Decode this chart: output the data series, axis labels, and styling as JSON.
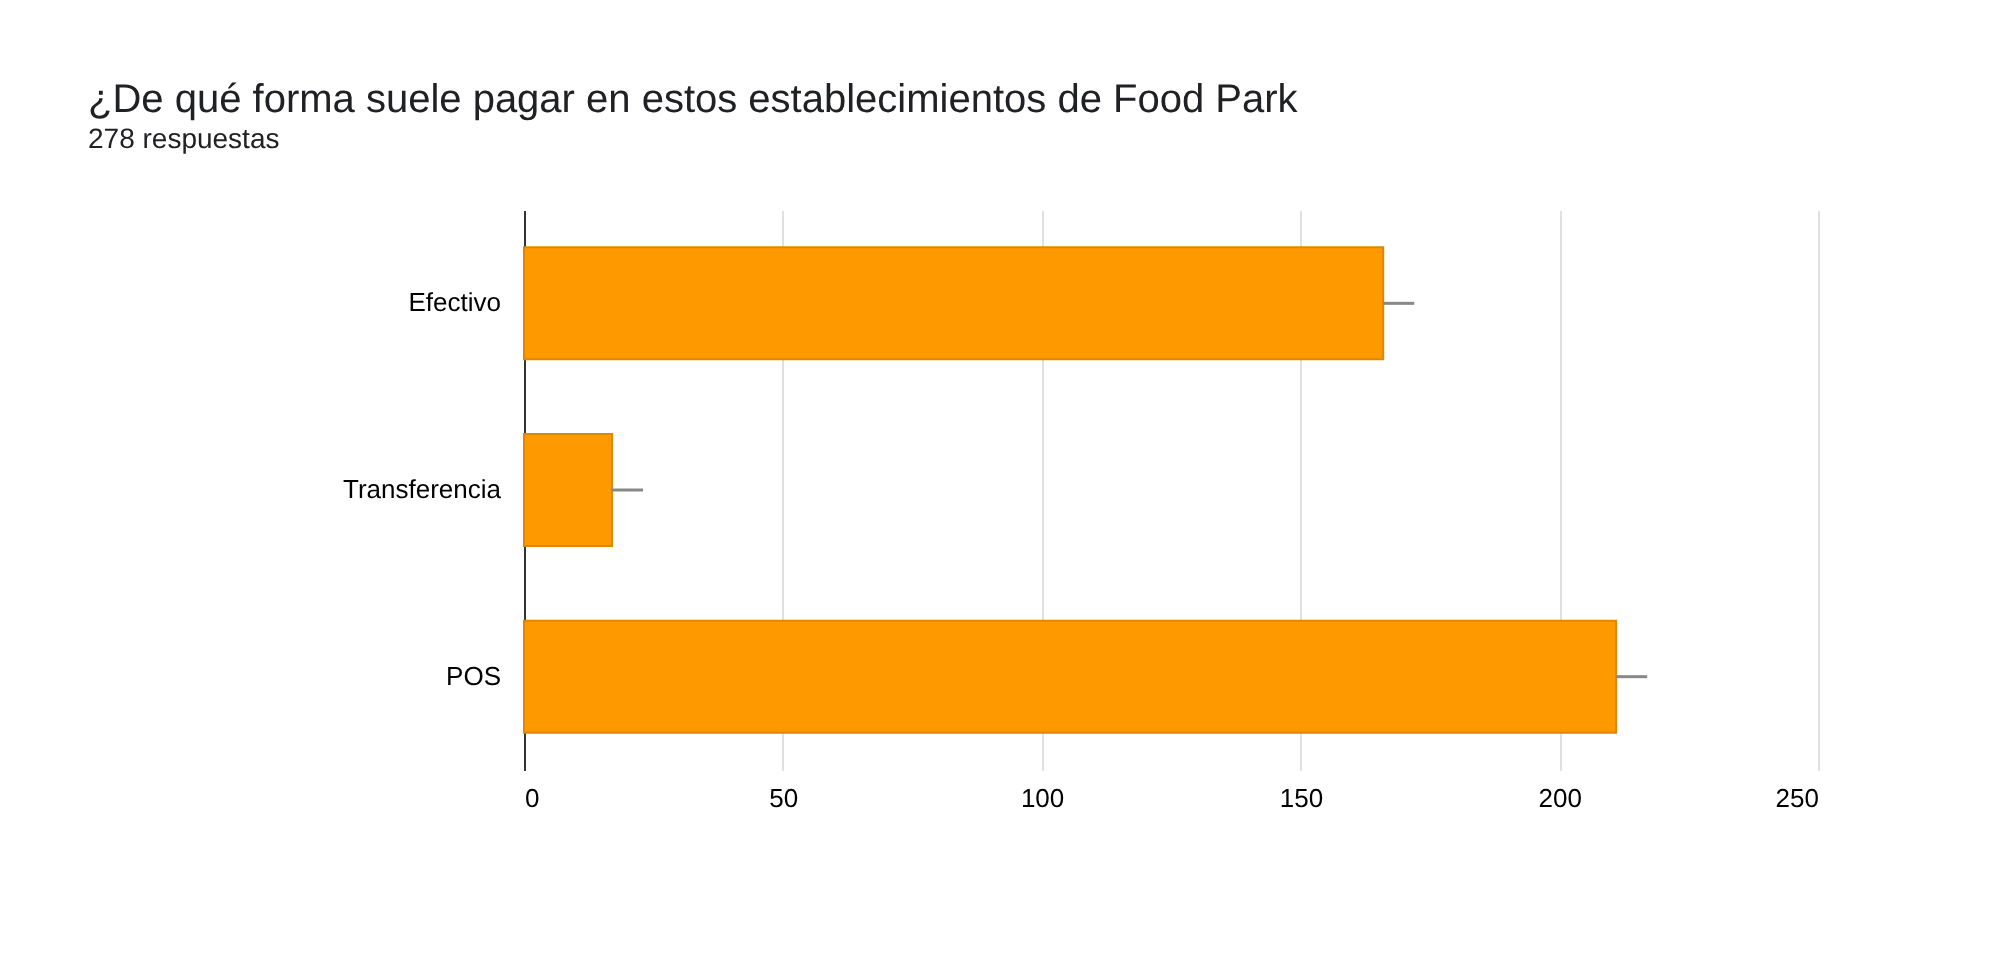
{
  "chart_data": {
    "type": "bar",
    "orientation": "horizontal",
    "title": "¿De qué forma suele pagar en estos establecimientos de Food Park",
    "subtitle": "278 respuestas",
    "categories": [
      "Efectivo",
      "Transferencia",
      "POS"
    ],
    "values": [
      166,
      17,
      211
    ],
    "errors": [
      [
        166,
        172
      ],
      [
        17,
        23
      ],
      [
        211,
        217
      ]
    ],
    "color": "#ff9900",
    "xlim": [
      0,
      250
    ],
    "xticks": [
      0,
      50,
      100,
      150,
      200,
      250
    ],
    "grid": "x"
  }
}
